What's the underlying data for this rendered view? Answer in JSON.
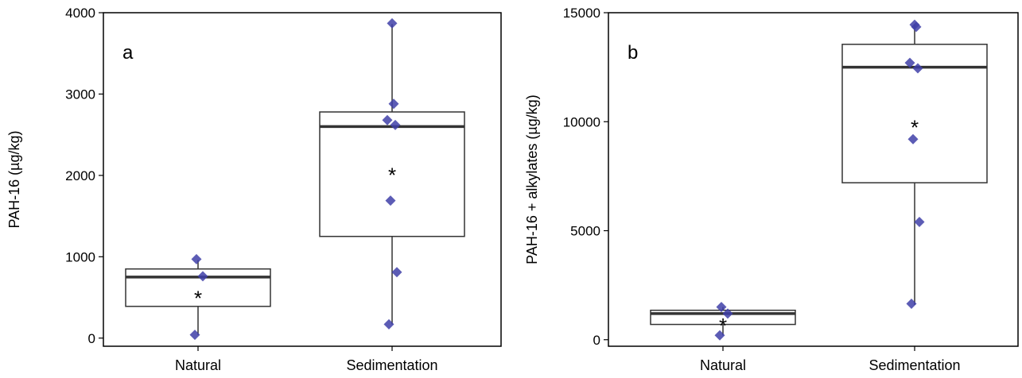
{
  "chart_data": [
    {
      "type": "box",
      "panel_label": "a",
      "ylabel": "PAH-16 (µg/kg)",
      "xlabel": "",
      "ylim": [
        -100,
        4000
      ],
      "yticks": [
        0,
        1000,
        2000,
        3000,
        4000
      ],
      "ytick_labels": [
        "0",
        "1000",
        "2000",
        "3000",
        "4000"
      ],
      "categories": [
        "Natural",
        "Sedimentation"
      ],
      "grid": false,
      "mean_marker": "*",
      "point_color": "#4040a8",
      "boxes": [
        {
          "category": "Natural",
          "whisker_low": 40,
          "q1": 390,
          "median": 750,
          "q3": 850,
          "whisker_high": 960,
          "mean": 560,
          "points": [
            40,
            760,
            970
          ]
        },
        {
          "category": "Sedimentation",
          "whisker_low": 170,
          "q1": 1250,
          "median": 2600,
          "q3": 2780,
          "whisker_high": 3860,
          "mean": 2070,
          "points": [
            170,
            810,
            1690,
            2620,
            2680,
            2880,
            3870
          ]
        }
      ]
    },
    {
      "type": "box",
      "panel_label": "b",
      "ylabel": "PAH-16 + alkylates (µg/kg)",
      "xlabel": "",
      "ylim": [
        -300,
        15000
      ],
      "yticks": [
        0,
        5000,
        10000,
        15000
      ],
      "ytick_labels": [
        "0",
        "5000",
        "10000",
        "15000"
      ],
      "categories": [
        "Natural",
        "Sedimentation"
      ],
      "grid": false,
      "mean_marker": "*",
      "point_color": "#4040a8",
      "boxes": [
        {
          "category": "Natural",
          "whisker_low": 200,
          "q1": 700,
          "median": 1200,
          "q3": 1350,
          "whisker_high": 1500,
          "mean": 900,
          "points": [
            200,
            1200,
            1500
          ]
        },
        {
          "category": "Sedimentation",
          "whisker_low": 1600,
          "q1": 7200,
          "median": 12500,
          "q3": 13550,
          "whisker_high": 14450,
          "mean": 10000,
          "points": [
            1650,
            5400,
            9200,
            12450,
            12700,
            14350,
            14450
          ]
        }
      ]
    }
  ]
}
